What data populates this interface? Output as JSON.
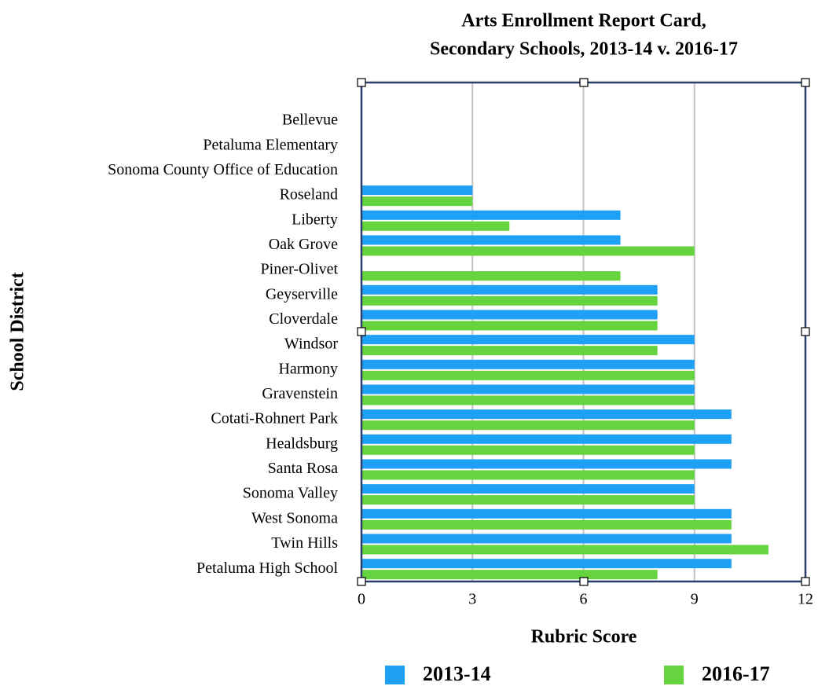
{
  "chart_data": {
    "type": "bar",
    "orientation": "horizontal",
    "title": [
      "Arts Enrollment Report Card,",
      "Secondary Schools, 2013-14 v. 2016-17"
    ],
    "x_label": "Rubric Score",
    "y_label": "School District",
    "categories": [
      "Bellevue",
      "Petaluma Elementary",
      "Sonoma County Office of Education",
      "Roseland",
      "Liberty",
      "Oak Grove",
      "Piner-Olivet",
      "Geyserville",
      "Cloverdale",
      "Windsor",
      "Harmony",
      "Gravenstein",
      "Cotati-Rohnert Park",
      "Healdsburg",
      "Santa Rosa",
      "Sonoma Valley",
      "West Sonoma",
      "Twin Hills",
      "Petaluma High School"
    ],
    "series": [
      {
        "name": "2013-14",
        "color": "#1ea0f5",
        "values": [
          0,
          0,
          0,
          3,
          7,
          7,
          0,
          8,
          8,
          9,
          9,
          9,
          10,
          10,
          10,
          9,
          10,
          10,
          10
        ]
      },
      {
        "name": "2016-17",
        "color": "#66d43f",
        "values": [
          0,
          0,
          0,
          3,
          4,
          9,
          7,
          8,
          8,
          8,
          9,
          9,
          9,
          9,
          9,
          9,
          10,
          11,
          8
        ]
      }
    ],
    "xlim": [
      0,
      12
    ],
    "xticks": [
      0,
      3,
      6,
      9,
      12
    ],
    "grid": true,
    "legend": "bottom"
  }
}
